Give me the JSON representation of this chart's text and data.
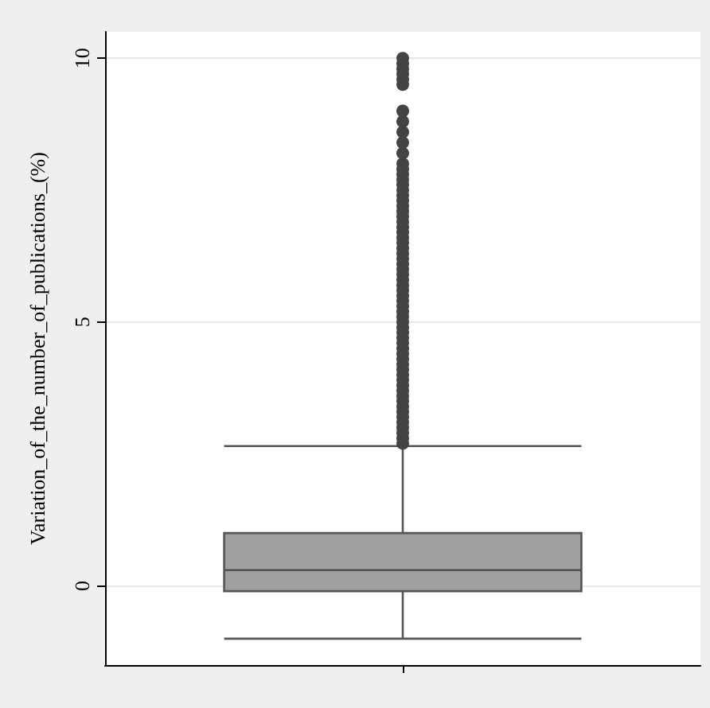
{
  "chart_data": {
    "type": "box",
    "ylabel": "Variation_of_the_number_of_publications_(%)",
    "categories": [
      null
    ],
    "boxes": [
      {
        "low": -1.0,
        "q1": -0.1,
        "median": 0.3,
        "q3": 1.0,
        "high": 2.65,
        "outliers": [
          2.7,
          2.8,
          2.9,
          3.0,
          3.1,
          3.2,
          3.3,
          3.4,
          3.5,
          3.6,
          3.7,
          3.8,
          3.9,
          4.0,
          4.1,
          4.2,
          4.3,
          4.4,
          4.5,
          4.6,
          4.7,
          4.8,
          4.9,
          5.0,
          5.1,
          5.2,
          5.3,
          5.4,
          5.5,
          5.6,
          5.7,
          5.8,
          5.9,
          6.0,
          6.1,
          6.2,
          6.3,
          6.4,
          6.5,
          6.6,
          6.7,
          6.8,
          6.9,
          7.0,
          7.1,
          7.2,
          7.3,
          7.4,
          7.5,
          7.6,
          7.7,
          7.8,
          7.9,
          8.0,
          8.2,
          8.4,
          8.6,
          8.8,
          9.0,
          9.5,
          9.6,
          9.7,
          9.8,
          9.9,
          10.0
        ]
      }
    ],
    "color": "#a0a0a0",
    "ylim": [
      -1.5,
      10.5
    ],
    "yticks": [
      0,
      5,
      10
    ],
    "grid": "y",
    "tick_labels": "y"
  }
}
